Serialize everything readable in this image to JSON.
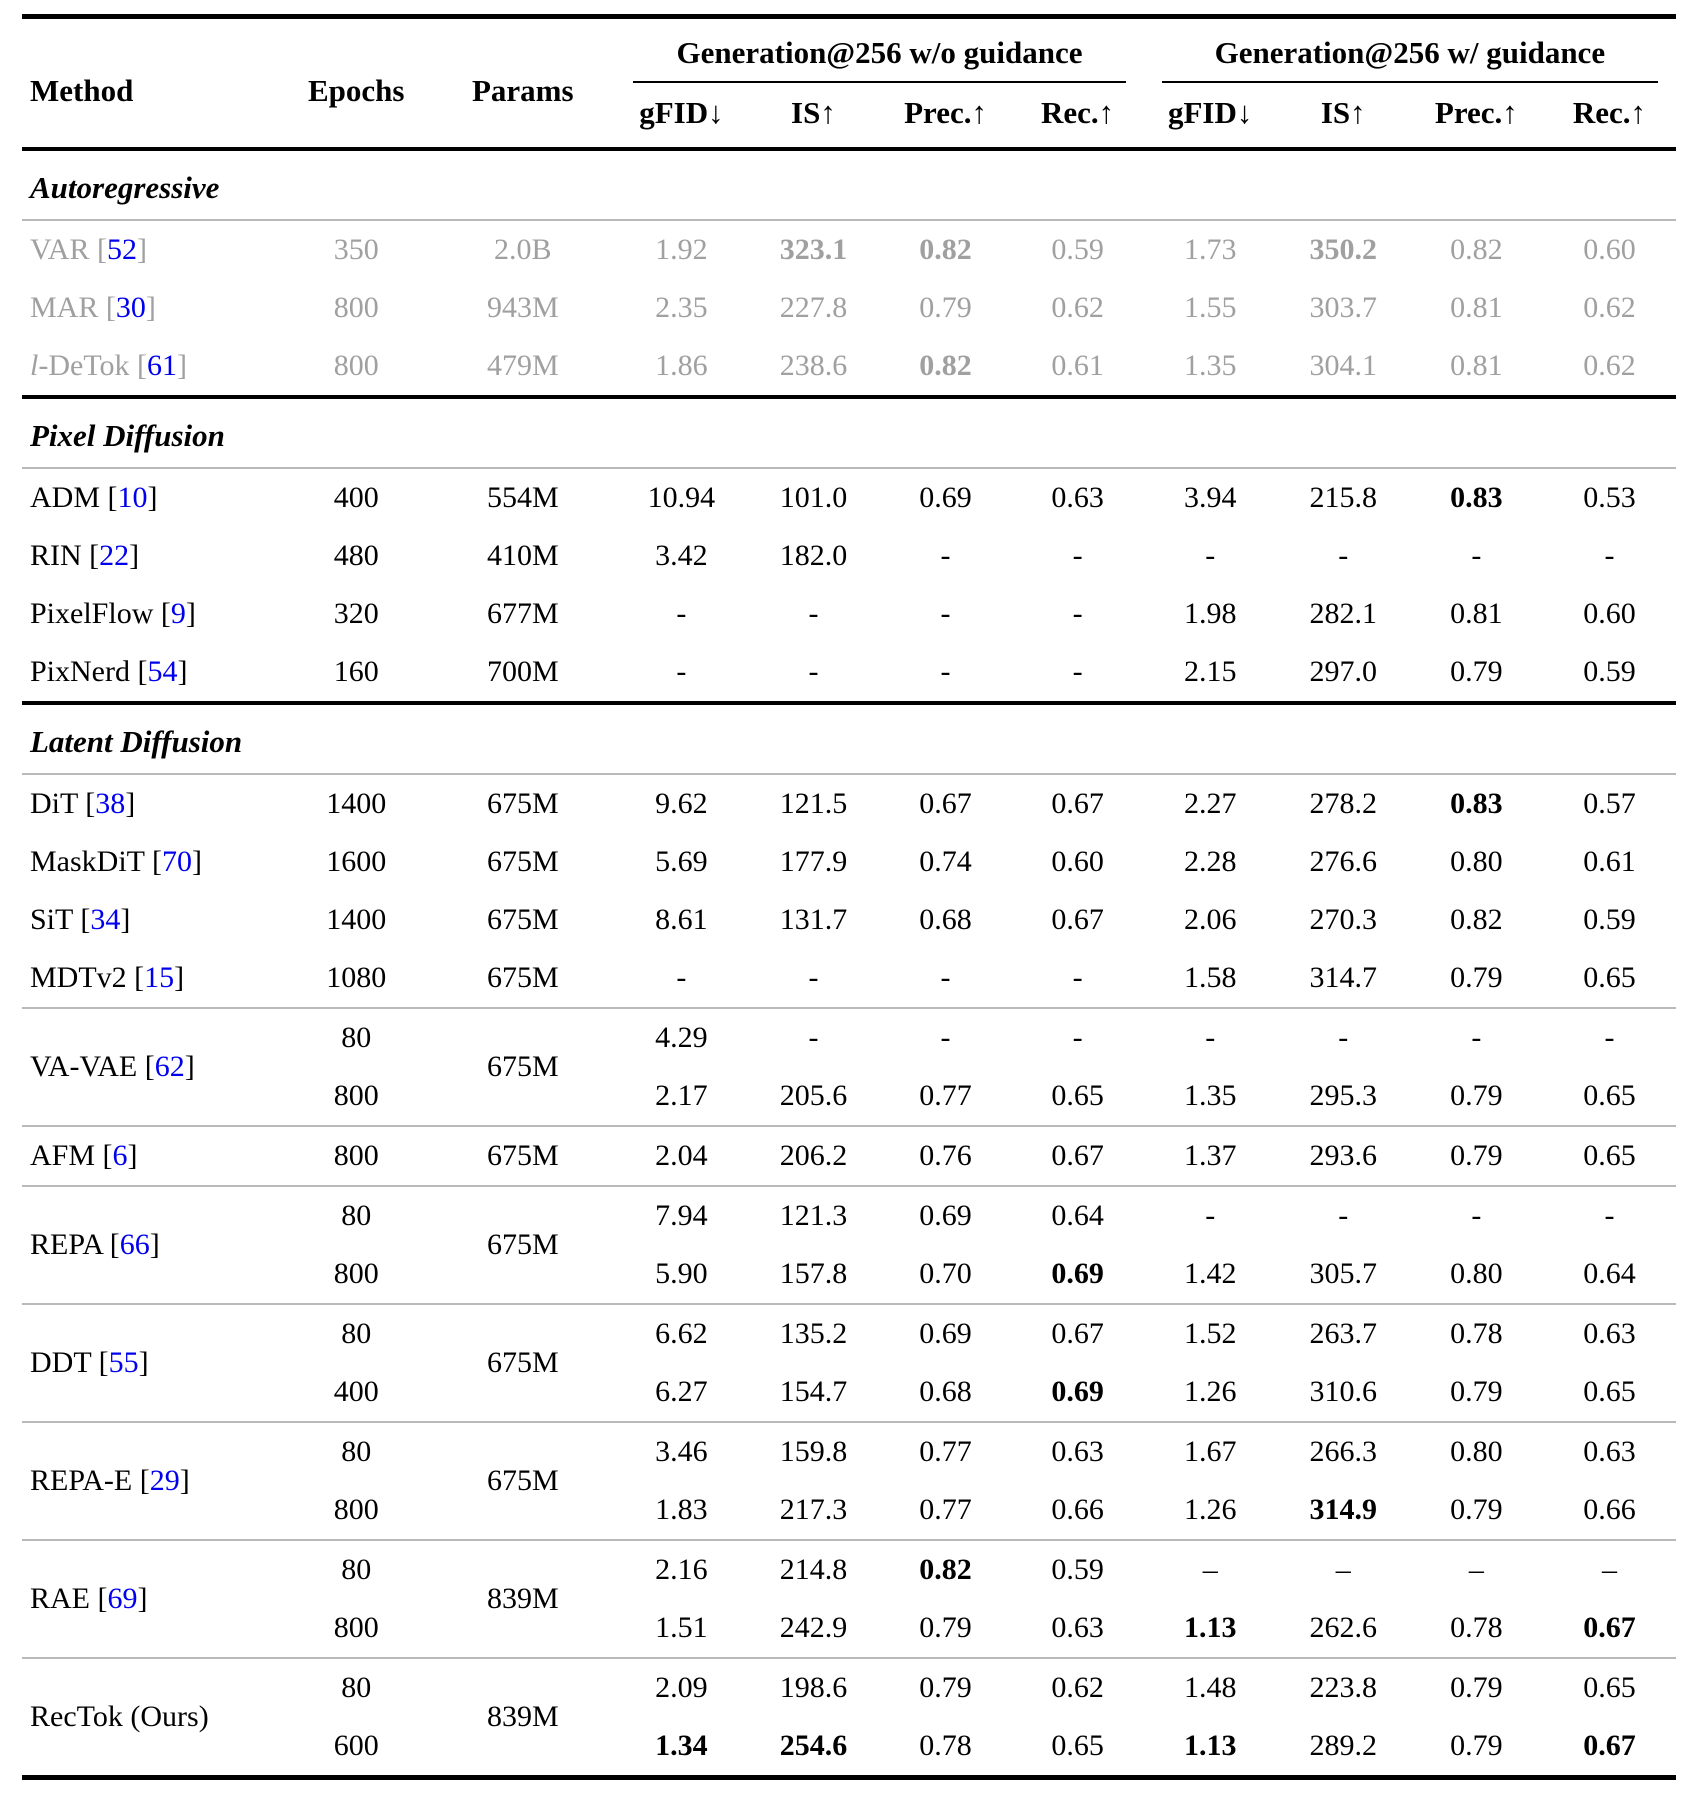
{
  "colors": {
    "citation_blue": "#0000ee",
    "muted_gray": "#a0a0a0",
    "rule_gray": "#b9b9b9",
    "text_black": "#000000"
  },
  "table": {
    "columns": {
      "method": "Method",
      "epochs": "Epochs",
      "params": "Params",
      "group_without": "Generation@256 w/o guidance",
      "group_with": "Generation@256 w/ guidance",
      "metrics": [
        "gFID↓",
        "IS↑",
        "Prec.↑",
        "Rec.↑"
      ]
    },
    "sections": [
      {
        "title": "Autoregressive",
        "blocks": [
          {
            "methods": [
              {
                "method": "VAR",
                "cite": "52",
                "gray": true,
                "params": "2.0B",
                "rows": [
                  {
                    "epochs": "350",
                    "cells": [
                      "1.92",
                      "323.1",
                      "0.82",
                      "0.59",
                      "1.73",
                      "350.2",
                      "0.82",
                      "0.60"
                    ],
                    "bold": [
                      1,
                      2,
                      5
                    ]
                  }
                ]
              },
              {
                "method": "MAR",
                "cite": "30",
                "gray": true,
                "params": "943M",
                "rows": [
                  {
                    "epochs": "800",
                    "cells": [
                      "2.35",
                      "227.8",
                      "0.79",
                      "0.62",
                      "1.55",
                      "303.7",
                      "0.81",
                      "0.62"
                    ],
                    "bold": []
                  }
                ]
              },
              {
                "method": "l-DeTok",
                "cite": "61",
                "gray": true,
                "italic_first": true,
                "params": "479M",
                "rows": [
                  {
                    "epochs": "800",
                    "cells": [
                      "1.86",
                      "238.6",
                      "0.82",
                      "0.61",
                      "1.35",
                      "304.1",
                      "0.81",
                      "0.62"
                    ],
                    "bold": [
                      2
                    ]
                  }
                ]
              }
            ]
          }
        ]
      },
      {
        "title": "Pixel Diffusion",
        "blocks": [
          {
            "methods": [
              {
                "method": "ADM",
                "cite": "10",
                "params": "554M",
                "rows": [
                  {
                    "epochs": "400",
                    "cells": [
                      "10.94",
                      "101.0",
                      "0.69",
                      "0.63",
                      "3.94",
                      "215.8",
                      "0.83",
                      "0.53"
                    ],
                    "bold": [
                      6
                    ]
                  }
                ]
              },
              {
                "method": "RIN",
                "cite": "22",
                "params": "410M",
                "rows": [
                  {
                    "epochs": "480",
                    "cells": [
                      "3.42",
                      "182.0",
                      "-",
                      "-",
                      "-",
                      "-",
                      "-",
                      "-"
                    ],
                    "bold": []
                  }
                ]
              },
              {
                "method": "PixelFlow",
                "cite": "9",
                "params": "677M",
                "rows": [
                  {
                    "epochs": "320",
                    "cells": [
                      "-",
                      "-",
                      "-",
                      "-",
                      "1.98",
                      "282.1",
                      "0.81",
                      "0.60"
                    ],
                    "bold": []
                  }
                ]
              },
              {
                "method": "PixNerd",
                "cite": "54",
                "params": "700M",
                "rows": [
                  {
                    "epochs": "160",
                    "cells": [
                      "-",
                      "-",
                      "-",
                      "-",
                      "2.15",
                      "297.0",
                      "0.79",
                      "0.59"
                    ],
                    "bold": []
                  }
                ]
              }
            ]
          }
        ]
      },
      {
        "title": "Latent Diffusion",
        "blocks": [
          {
            "methods": [
              {
                "method": "DiT",
                "cite": "38",
                "params": "675M",
                "rows": [
                  {
                    "epochs": "1400",
                    "cells": [
                      "9.62",
                      "121.5",
                      "0.67",
                      "0.67",
                      "2.27",
                      "278.2",
                      "0.83",
                      "0.57"
                    ],
                    "bold": [
                      6
                    ]
                  }
                ]
              },
              {
                "method": "MaskDiT",
                "cite": "70",
                "params": "675M",
                "rows": [
                  {
                    "epochs": "1600",
                    "cells": [
                      "5.69",
                      "177.9",
                      "0.74",
                      "0.60",
                      "2.28",
                      "276.6",
                      "0.80",
                      "0.61"
                    ],
                    "bold": []
                  }
                ]
              },
              {
                "method": "SiT",
                "cite": "34",
                "params": "675M",
                "rows": [
                  {
                    "epochs": "1400",
                    "cells": [
                      "8.61",
                      "131.7",
                      "0.68",
                      "0.67",
                      "2.06",
                      "270.3",
                      "0.82",
                      "0.59"
                    ],
                    "bold": []
                  }
                ]
              },
              {
                "method": "MDTv2",
                "cite": "15",
                "params": "675M",
                "rows": [
                  {
                    "epochs": "1080",
                    "cells": [
                      "-",
                      "-",
                      "-",
                      "-",
                      "1.58",
                      "314.7",
                      "0.79",
                      "0.65"
                    ],
                    "bold": []
                  }
                ]
              }
            ]
          },
          {
            "methods": [
              {
                "method": "VA-VAE",
                "cite": "62",
                "params": "675M",
                "rows": [
                  {
                    "epochs": "80",
                    "cells": [
                      "4.29",
                      "-",
                      "-",
                      "-",
                      "-",
                      "-",
                      "-",
                      "-"
                    ],
                    "bold": []
                  },
                  {
                    "epochs": "800",
                    "cells": [
                      "2.17",
                      "205.6",
                      "0.77",
                      "0.65",
                      "1.35",
                      "295.3",
                      "0.79",
                      "0.65"
                    ],
                    "bold": []
                  }
                ]
              }
            ]
          },
          {
            "methods": [
              {
                "method": "AFM",
                "cite": "6",
                "params": "675M",
                "rows": [
                  {
                    "epochs": "800",
                    "cells": [
                      "2.04",
                      "206.2",
                      "0.76",
                      "0.67",
                      "1.37",
                      "293.6",
                      "0.79",
                      "0.65"
                    ],
                    "bold": []
                  }
                ]
              }
            ]
          },
          {
            "methods": [
              {
                "method": "REPA",
                "cite": "66",
                "params": "675M",
                "rows": [
                  {
                    "epochs": "80",
                    "cells": [
                      "7.94",
                      "121.3",
                      "0.69",
                      "0.64",
                      "-",
                      "-",
                      "-",
                      "-"
                    ],
                    "bold": []
                  },
                  {
                    "epochs": "800",
                    "cells": [
                      "5.90",
                      "157.8",
                      "0.70",
                      "0.69",
                      "1.42",
                      "305.7",
                      "0.80",
                      "0.64"
                    ],
                    "bold": [
                      3
                    ]
                  }
                ]
              }
            ]
          },
          {
            "methods": [
              {
                "method": "DDT",
                "cite": "55",
                "params": "675M",
                "rows": [
                  {
                    "epochs": "80",
                    "cells": [
                      "6.62",
                      "135.2",
                      "0.69",
                      "0.67",
                      "1.52",
                      "263.7",
                      "0.78",
                      "0.63"
                    ],
                    "bold": []
                  },
                  {
                    "epochs": "400",
                    "cells": [
                      "6.27",
                      "154.7",
                      "0.68",
                      "0.69",
                      "1.26",
                      "310.6",
                      "0.79",
                      "0.65"
                    ],
                    "bold": [
                      3
                    ]
                  }
                ]
              }
            ]
          },
          {
            "methods": [
              {
                "method": "REPA-E",
                "cite": "29",
                "params": "675M",
                "rows": [
                  {
                    "epochs": "80",
                    "cells": [
                      "3.46",
                      "159.8",
                      "0.77",
                      "0.63",
                      "1.67",
                      "266.3",
                      "0.80",
                      "0.63"
                    ],
                    "bold": []
                  },
                  {
                    "epochs": "800",
                    "cells": [
                      "1.83",
                      "217.3",
                      "0.77",
                      "0.66",
                      "1.26",
                      "314.9",
                      "0.79",
                      "0.66"
                    ],
                    "bold": [
                      5
                    ]
                  }
                ]
              }
            ]
          },
          {
            "methods": [
              {
                "method": "RAE",
                "cite": "69",
                "params": "839M",
                "rows": [
                  {
                    "epochs": "80",
                    "cells": [
                      "2.16",
                      "214.8",
                      "0.82",
                      "0.59",
                      "–",
                      "–",
                      "–",
                      "–"
                    ],
                    "bold": [
                      2
                    ]
                  },
                  {
                    "epochs": "800",
                    "cells": [
                      "1.51",
                      "242.9",
                      "0.79",
                      "0.63",
                      "1.13",
                      "262.6",
                      "0.78",
                      "0.67"
                    ],
                    "bold": [
                      4,
                      7
                    ]
                  }
                ]
              }
            ]
          },
          {
            "methods": [
              {
                "method": "RecTok (Ours)",
                "cite": null,
                "params": "839M",
                "rows": [
                  {
                    "epochs": "80",
                    "cells": [
                      "2.09",
                      "198.6",
                      "0.79",
                      "0.62",
                      "1.48",
                      "223.8",
                      "0.79",
                      "0.65"
                    ],
                    "bold": []
                  },
                  {
                    "epochs": "600",
                    "cells": [
                      "1.34",
                      "254.6",
                      "0.78",
                      "0.65",
                      "1.13",
                      "289.2",
                      "0.79",
                      "0.67"
                    ],
                    "bold": [
                      0,
                      1,
                      4,
                      7
                    ]
                  }
                ]
              }
            ]
          }
        ]
      }
    ]
  }
}
